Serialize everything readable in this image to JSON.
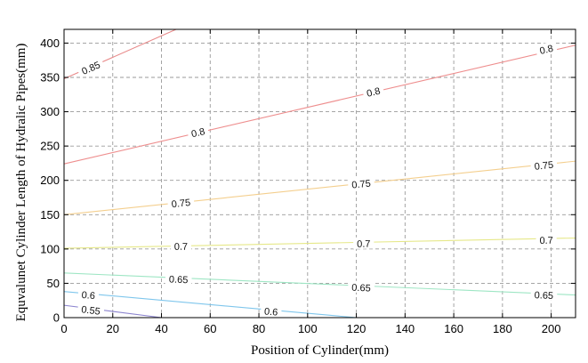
{
  "chart_data": {
    "type": "line",
    "title": "",
    "xlabel": "Position of Cylinder(mm)",
    "ylabel": "Equvalunet Cylinder Length of Hydralic Pipes(mm)",
    "xlim": [
      0,
      210
    ],
    "ylim": [
      0,
      420
    ],
    "xticks": [
      0,
      20,
      40,
      60,
      80,
      100,
      120,
      140,
      160,
      180,
      200
    ],
    "yticks": [
      0,
      50,
      100,
      150,
      200,
      250,
      300,
      350,
      400
    ],
    "grid": true,
    "series": [
      {
        "name": "0.85",
        "color": "#e88a8a",
        "points": [
          [
            0,
            348
          ],
          [
            46,
            420
          ]
        ],
        "labels": [
          {
            "text": "0.85",
            "x": 11,
            "y": 364
          }
        ]
      },
      {
        "name": "0.8",
        "color": "#ee8e8e",
        "points": [
          [
            0,
            224
          ],
          [
            210,
            397
          ]
        ],
        "labels": [
          {
            "text": "0.8",
            "x": 55,
            "y": 270
          },
          {
            "text": "0.8",
            "x": 127,
            "y": 329
          },
          {
            "text": "0.8",
            "x": 198,
            "y": 391
          }
        ]
      },
      {
        "name": "0.75",
        "color": "#f4cf8e",
        "points": [
          [
            0,
            150
          ],
          [
            210,
            228
          ]
        ],
        "labels": [
          {
            "text": "0.75",
            "x": 48,
            "y": 167
          },
          {
            "text": "0.75",
            "x": 122,
            "y": 195
          },
          {
            "text": "0.75",
            "x": 197,
            "y": 222
          }
        ]
      },
      {
        "name": "0.7",
        "color": "#e6e889",
        "points": [
          [
            0,
            101
          ],
          [
            210,
            116
          ]
        ],
        "labels": [
          {
            "text": "0.7",
            "x": 48,
            "y": 104
          },
          {
            "text": "0.7",
            "x": 123,
            "y": 108
          },
          {
            "text": "0.7",
            "x": 198,
            "y": 113
          }
        ]
      },
      {
        "name": "0.65",
        "color": "#9ee6c4",
        "points": [
          [
            0,
            65
          ],
          [
            210,
            33
          ]
        ],
        "labels": [
          {
            "text": "0.65",
            "x": 47,
            "y": 56
          },
          {
            "text": "0.65",
            "x": 122,
            "y": 44
          },
          {
            "text": "0.65",
            "x": 197,
            "y": 33
          }
        ]
      },
      {
        "name": "0.6",
        "color": "#7fc6ec",
        "points": [
          [
            0,
            38
          ],
          [
            120,
            0
          ]
        ],
        "labels": [
          {
            "text": "0.6",
            "x": 10,
            "y": 33
          },
          {
            "text": "0.6",
            "x": 85,
            "y": 9
          }
        ]
      },
      {
        "name": "0.55",
        "color": "#8b83cf",
        "points": [
          [
            0,
            18
          ],
          [
            40,
            0
          ]
        ],
        "labels": [
          {
            "text": "0.55",
            "x": 11,
            "y": 11
          }
        ]
      }
    ]
  }
}
